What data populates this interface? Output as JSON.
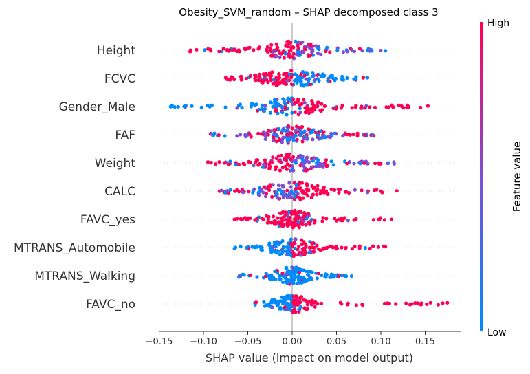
{
  "chart_data": {
    "type": "scatter",
    "title": "Obesity_SVM_random – SHAP decomposed class 3",
    "xlabel": "SHAP value (impact on model output)",
    "xlim": [
      -0.15,
      0.18
    ],
    "xticks": [
      "−0.15",
      "−0.10",
      "−0.05",
      "0.00",
      "0.05",
      "0.10",
      "0.15"
    ],
    "xtick_values": [
      -0.15,
      -0.1,
      -0.05,
      0.0,
      0.05,
      0.1,
      0.15
    ],
    "grid": false,
    "colorbar": {
      "label": "Feature value",
      "high": "High",
      "low": "Low",
      "color_high": "#ff0052",
      "color_mid": "#7e4ed4",
      "color_low": "#008bfb"
    },
    "features": [
      {
        "name": "Height",
        "min": -0.115,
        "max": 0.105,
        "spread": 0.035,
        "neg_color": "high",
        "pos_color": "mixed",
        "sigma": 0.02
      },
      {
        "name": "FCVC",
        "min": -0.075,
        "max": 0.085,
        "spread": 0.03,
        "neg_color": "high",
        "pos_color": "low",
        "sigma": 0.02
      },
      {
        "name": "Gender_Male",
        "min": -0.137,
        "max": 0.153,
        "spread": 0.03,
        "neg_color": "low",
        "pos_color": "high",
        "sigma": 0.022
      },
      {
        "name": "FAF",
        "min": -0.092,
        "max": 0.092,
        "spread": 0.025,
        "neg_color": "mixed",
        "pos_color": "mixed",
        "sigma": 0.018
      },
      {
        "name": "Weight",
        "min": -0.095,
        "max": 0.115,
        "spread": 0.035,
        "neg_color": "high",
        "pos_color": "mixed",
        "sigma": 0.02
      },
      {
        "name": "CALC",
        "min": -0.082,
        "max": 0.118,
        "spread": 0.035,
        "neg_color": "mixed",
        "pos_color": "high",
        "sigma": 0.022
      },
      {
        "name": "FAVC_yes",
        "min": -0.065,
        "max": 0.112,
        "spread": 0.02,
        "neg_color": "high",
        "pos_color": "high",
        "sigma": 0.015
      },
      {
        "name": "MTRANS_Automobile",
        "min": -0.065,
        "max": 0.105,
        "spread": 0.02,
        "neg_color": "low",
        "pos_color": "high",
        "sigma": 0.015
      },
      {
        "name": "MTRANS_Walking",
        "min": -0.06,
        "max": 0.067,
        "spread": 0.015,
        "neg_color": "low",
        "pos_color": "low",
        "sigma": 0.012
      },
      {
        "name": "FAVC_no",
        "min": -0.042,
        "max": 0.175,
        "spread": 0.015,
        "neg_color": "low",
        "pos_color": "high",
        "sigma": 0.012
      }
    ]
  }
}
